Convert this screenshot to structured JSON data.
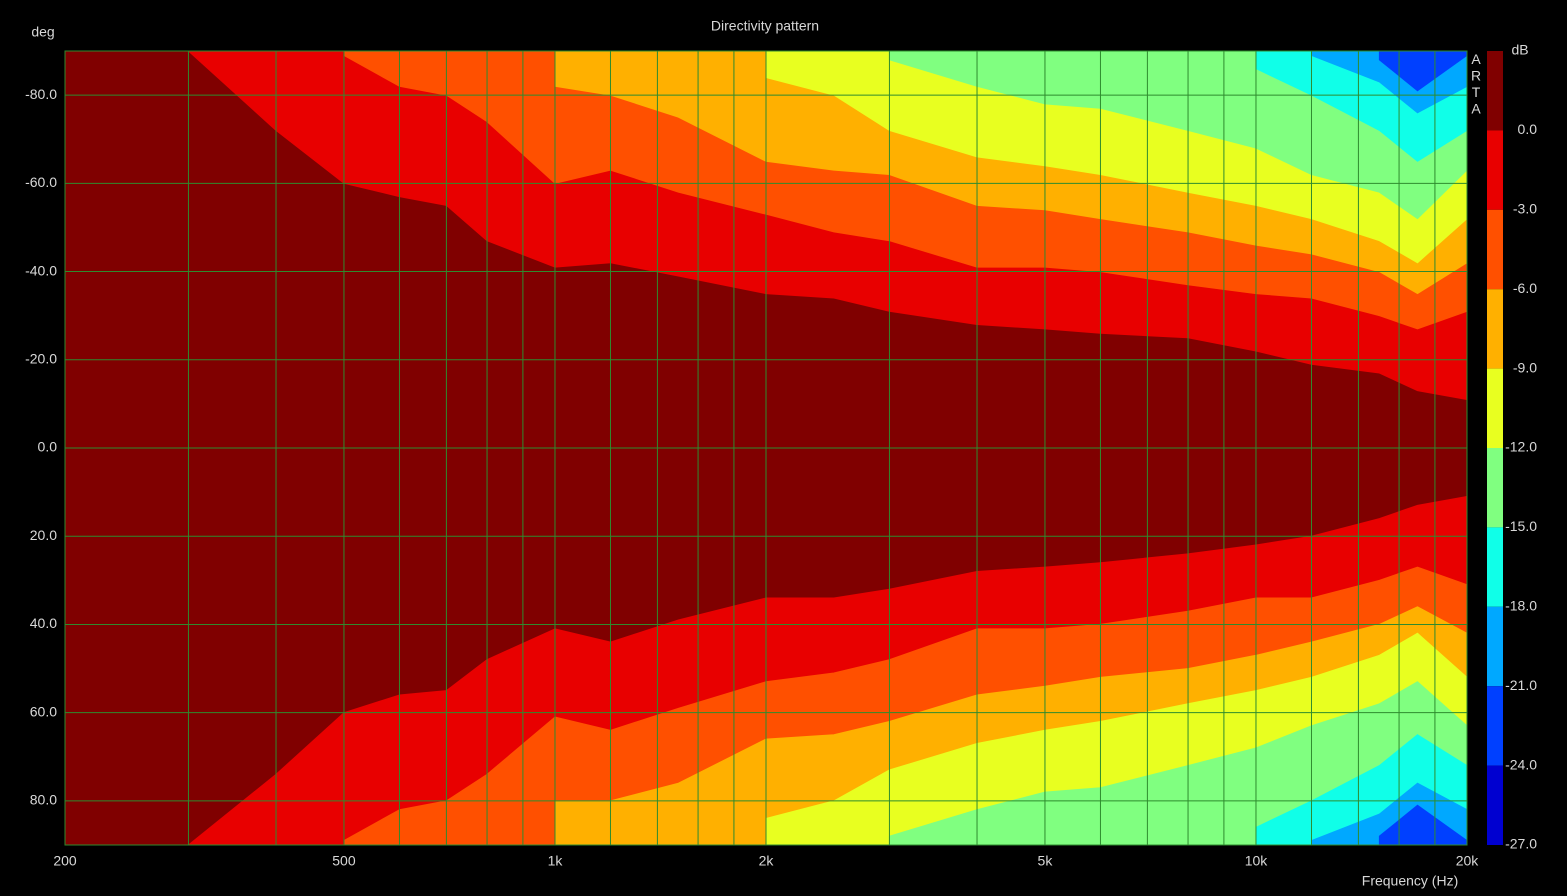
{
  "chart_data": {
    "type": "contour",
    "title": "Directivity pattern",
    "ylabel": "deg",
    "xlabel": "Frequency (Hz)",
    "zlabel": "dB",
    "watermark": "ARTA",
    "log_x": true,
    "grid": true,
    "xlim": [
      200,
      20000
    ],
    "xticks": [
      200,
      500,
      {
        "value": 1000,
        "label": "1k"
      },
      {
        "value": 2000,
        "label": "2k"
      },
      {
        "value": 5000,
        "label": "5k"
      },
      {
        "value": 10000,
        "label": "10k"
      },
      {
        "value": 20000,
        "label": "20k"
      }
    ],
    "xminor": [
      300,
      400,
      600,
      700,
      800,
      900,
      1200,
      1400,
      1600,
      1800,
      3000,
      4000,
      6000,
      7000,
      8000,
      9000,
      12000,
      14000,
      16000,
      18000
    ],
    "ylim": [
      -90,
      90
    ],
    "yticks": [
      {
        "value": -80,
        "label": "-80.0"
      },
      {
        "value": -60,
        "label": "-60.0"
      },
      {
        "value": -40,
        "label": "-40.0"
      },
      {
        "value": -20,
        "label": "-20.0"
      },
      {
        "value": 0,
        "label": "0.0"
      },
      {
        "value": 20,
        "label": "20.0"
      },
      {
        "value": 40,
        "label": "40.0"
      },
      {
        "value": 60,
        "label": "60.0"
      },
      {
        "value": 80,
        "label": "80.0"
      }
    ],
    "zlim": [
      -27,
      3
    ],
    "zticks": [
      {
        "value": 0,
        "label": "0.0"
      },
      {
        "value": -3,
        "label": "-3.0"
      },
      {
        "value": -6,
        "label": "-6.0"
      },
      {
        "value": -9,
        "label": "-9.0"
      },
      {
        "value": -12,
        "label": "-12.0"
      },
      {
        "value": -15,
        "label": "-15.0"
      },
      {
        "value": -18,
        "label": "-18.0"
      },
      {
        "value": -21,
        "label": "-21.0"
      },
      {
        "value": -24,
        "label": "-24.0"
      },
      {
        "value": -27,
        "label": "-27.0"
      }
    ],
    "colors": [
      "#800000",
      "#e80000",
      "#ff5000",
      "#ffb000",
      "#e8ff20",
      "#80ff80",
      "#10ffe8",
      "#00a8ff",
      "#0040ff",
      "#0000d0"
    ],
    "grid_color": "#2e8b2e",
    "x": [
      200,
      300,
      400,
      500,
      600,
      700,
      800,
      1000,
      1200,
      1500,
      2000,
      2500,
      3000,
      4000,
      5000,
      6000,
      8000,
      10000,
      12000,
      15000,
      17000,
      20000
    ],
    "contours": [
      {
        "neg": [
          null,
          -90,
          -72,
          -60,
          -57,
          -55,
          -47,
          -41,
          -42,
          -39,
          -35,
          -34,
          -31,
          -28,
          -27,
          -26,
          -25,
          -22,
          -19,
          -17,
          -13,
          -11
        ],
        "pos": [
          null,
          90,
          74,
          60,
          56,
          55,
          48,
          41,
          44,
          39,
          34,
          34,
          32,
          28,
          27,
          26,
          24,
          22,
          20,
          16,
          13,
          11
        ]
      },
      {
        "neg": [
          null,
          null,
          null,
          -89,
          -82,
          -80,
          -74,
          -60,
          -63,
          -58,
          -53,
          -49,
          -47,
          -41,
          -41,
          -40,
          -37,
          -35,
          -34,
          -30,
          -27,
          -31
        ],
        "pos": [
          null,
          null,
          null,
          89,
          82,
          80,
          74,
          61,
          64,
          59,
          53,
          51,
          48,
          41,
          41,
          40,
          37,
          34,
          34,
          30,
          27,
          31
        ]
      },
      {
        "neg": [
          null,
          null,
          null,
          null,
          null,
          null,
          null,
          -82,
          -80,
          -75,
          -65,
          -63,
          -62,
          -55,
          -54,
          -52,
          -49,
          -46,
          -44,
          -40,
          -35,
          -42
        ],
        "pos": [
          null,
          null,
          null,
          null,
          null,
          null,
          null,
          80,
          80,
          76,
          66,
          65,
          62,
          56,
          54,
          52,
          50,
          47,
          44,
          40,
          36,
          42
        ]
      },
      {
        "neg": [
          null,
          null,
          null,
          null,
          null,
          null,
          null,
          null,
          null,
          null,
          -84,
          -80,
          -72,
          -66,
          -64,
          -62,
          -58,
          -55,
          -52,
          -47,
          -42,
          -52
        ],
        "pos": [
          null,
          null,
          null,
          null,
          null,
          null,
          null,
          null,
          null,
          null,
          84,
          80,
          73,
          67,
          64,
          62,
          58,
          55,
          52,
          47,
          42,
          52
        ]
      },
      {
        "neg": [
          null,
          null,
          null,
          null,
          null,
          null,
          null,
          null,
          null,
          null,
          null,
          null,
          -88,
          -82,
          -78,
          -77,
          -72,
          -68,
          -62,
          -58,
          -52,
          -63
        ],
        "pos": [
          null,
          null,
          null,
          null,
          null,
          null,
          null,
          null,
          null,
          null,
          null,
          null,
          88,
          82,
          78,
          77,
          72,
          68,
          63,
          58,
          53,
          63
        ]
      },
      {
        "neg": [
          null,
          null,
          null,
          null,
          null,
          null,
          null,
          null,
          null,
          null,
          null,
          null,
          null,
          null,
          null,
          null,
          null,
          -86,
          -80,
          -72,
          -65,
          -72
        ],
        "pos": [
          null,
          null,
          null,
          null,
          null,
          null,
          null,
          null,
          null,
          null,
          null,
          null,
          null,
          null,
          null,
          null,
          null,
          86,
          80,
          72,
          65,
          72
        ]
      },
      {
        "neg": [
          null,
          null,
          null,
          null,
          null,
          null,
          null,
          null,
          null,
          null,
          null,
          null,
          null,
          null,
          null,
          null,
          null,
          null,
          -89,
          -83,
          -76,
          -82
        ],
        "pos": [
          null,
          null,
          null,
          null,
          null,
          null,
          null,
          null,
          null,
          null,
          null,
          null,
          null,
          null,
          null,
          null,
          null,
          null,
          89,
          83,
          76,
          82
        ]
      },
      {
        "neg": [
          null,
          null,
          null,
          null,
          null,
          null,
          null,
          null,
          null,
          null,
          null,
          null,
          null,
          null,
          null,
          null,
          null,
          null,
          null,
          -88,
          -81,
          -89
        ],
        "pos": [
          null,
          null,
          null,
          null,
          null,
          null,
          null,
          null,
          null,
          null,
          null,
          null,
          null,
          null,
          null,
          null,
          null,
          null,
          null,
          88,
          81,
          89
        ]
      }
    ]
  }
}
